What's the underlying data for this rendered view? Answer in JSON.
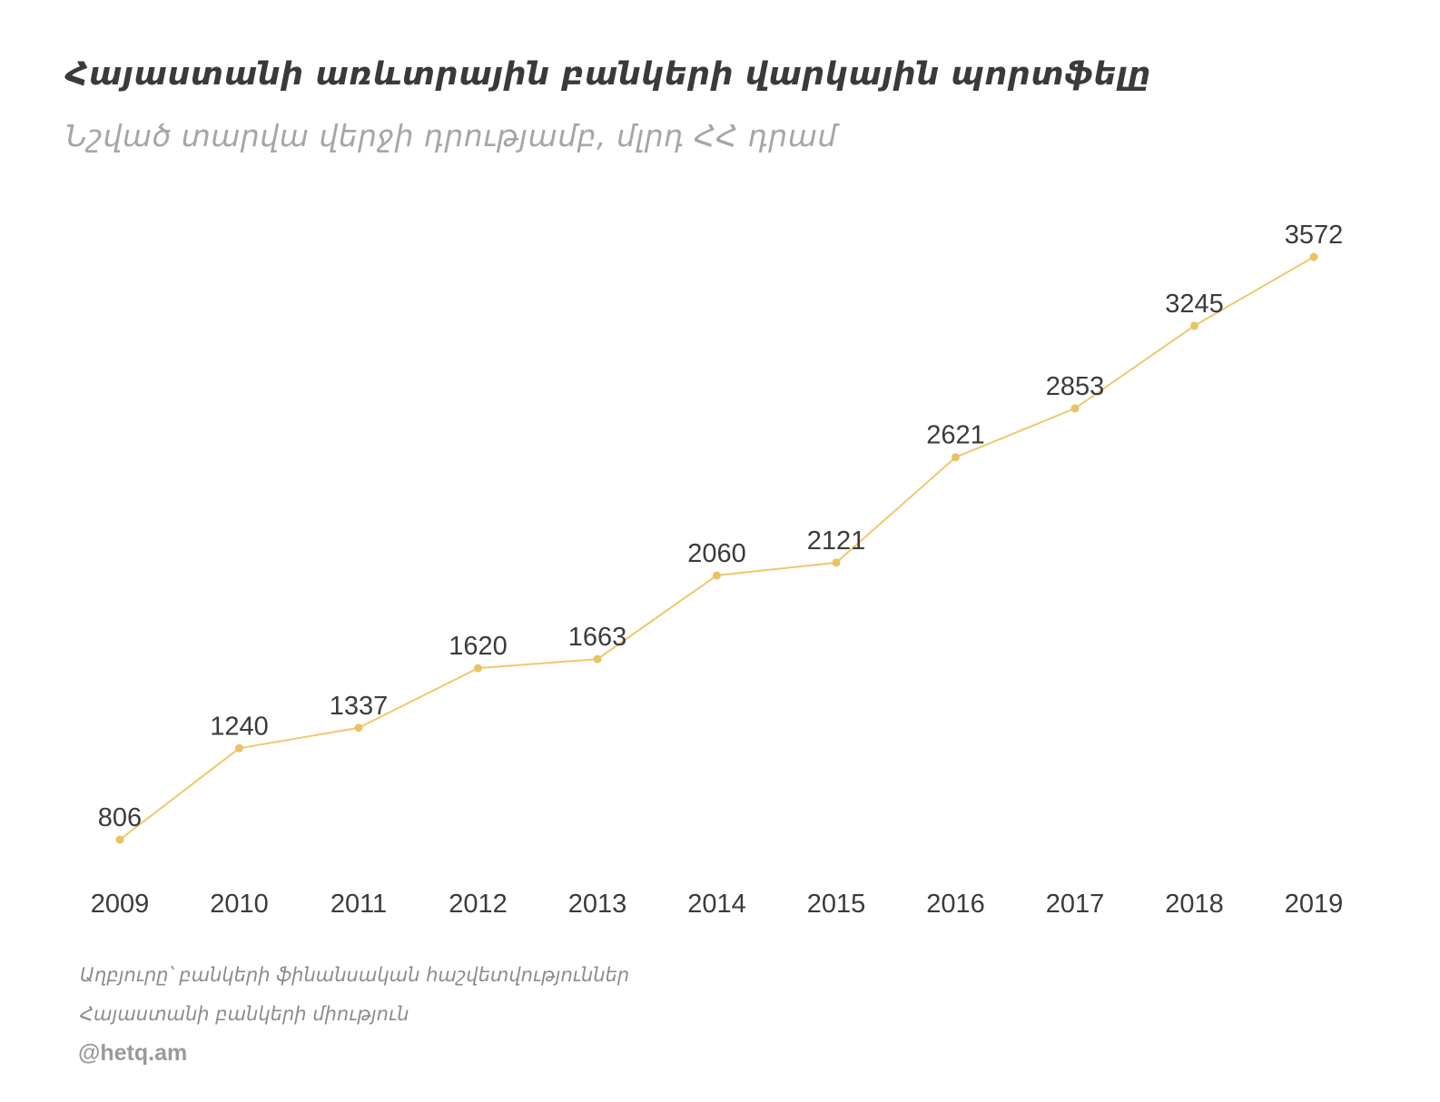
{
  "title": "Հայաստանի առևտրային բանկերի վարկային պորտֆելը",
  "subtitle": "Նշված տարվա վերջի դրությամբ, մլրդ ՀՀ դրամ",
  "source": {
    "line1": "Աղբյուրը՝  բանկերի ֆինանսական հաշվետվություններ",
    "line2": "Հայաստանի բանկերի միություն"
  },
  "credit": "@hetq.am",
  "colors": {
    "line": "#ecc96c",
    "marker": "#e9c262",
    "label": "#3b3b3b",
    "title": "#3a3a3a",
    "subtitle": "#a6a6a6",
    "source": "#8c8c8c"
  },
  "chart_data": {
    "type": "line",
    "x": [
      "2009",
      "2010",
      "2011",
      "2012",
      "2013",
      "2014",
      "2015",
      "2016",
      "2017",
      "2018",
      "2019"
    ],
    "values": [
      806,
      1240,
      1337,
      1620,
      1663,
      2060,
      2121,
      2621,
      2853,
      3245,
      3572
    ],
    "title": "Հայաստանի առևտրային բանկերի վարկային պորտֆելը",
    "subtitle": "Նշված տարվա վերջի դրությամբ, մլրդ ՀՀ դրամ",
    "xlabel": "",
    "ylabel": "",
    "grid": false,
    "data_labels": true
  }
}
